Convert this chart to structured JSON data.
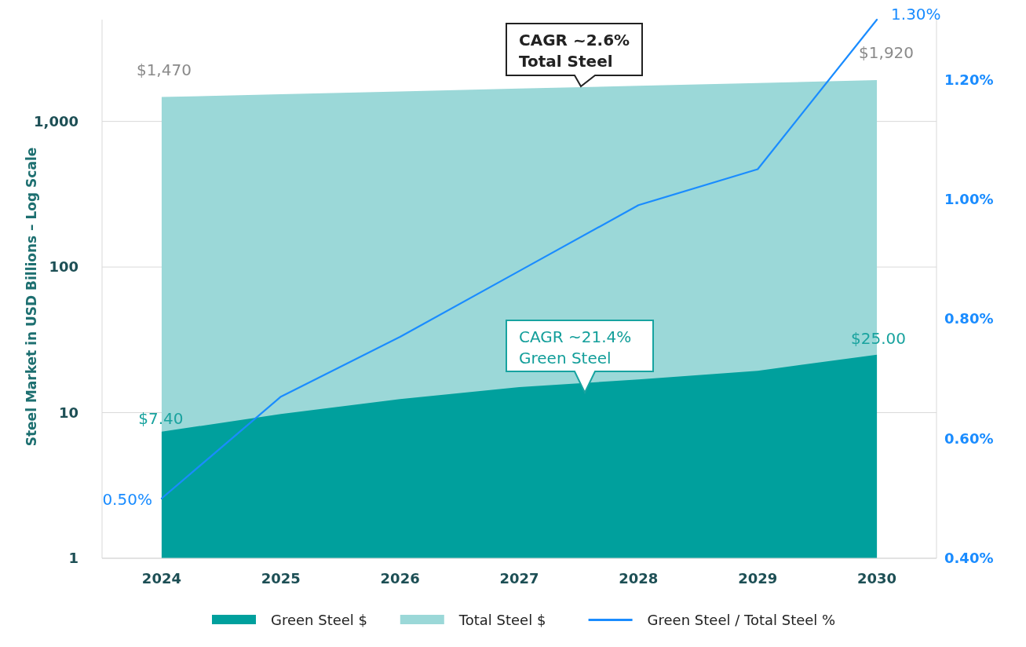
{
  "chart_data": {
    "type": "area",
    "ylabel": "Steel Market in USD Billions – Log Scale",
    "categories": [
      "2024",
      "2025",
      "2026",
      "2027",
      "2028",
      "2029",
      "2030"
    ],
    "log": "y",
    "ylim": [
      1,
      5000
    ],
    "yticks": [
      {
        "value": 1,
        "label": "1"
      },
      {
        "value": 10,
        "label": "10"
      },
      {
        "value": 100,
        "label": "100"
      },
      {
        "value": 1000,
        "label": "1,000"
      }
    ],
    "y2lim": [
      0.4,
      1.3
    ],
    "y2ticks": [
      {
        "value": 0.4,
        "label": "0.40%"
      },
      {
        "value": 0.6,
        "label": "0.60%"
      },
      {
        "value": 0.8,
        "label": "0.80%"
      },
      {
        "value": 1.0,
        "label": "1.00%"
      },
      {
        "value": 1.2,
        "label": "1.20%"
      }
    ],
    "grid": "y",
    "legend": "bottom",
    "series": [
      {
        "name": "Green Steel $",
        "color": "#00a09d",
        "values": [
          7.4,
          9.8,
          12.4,
          15,
          16.9,
          19.4,
          25
        ],
        "value_labels": [
          "$7.40",
          null,
          null,
          null,
          null,
          null,
          "$25.00"
        ]
      },
      {
        "name": "Total Steel $",
        "color": "#9bd8d8",
        "values": [
          1470,
          1537,
          1607,
          1680,
          1756,
          1836,
          1920
        ],
        "value_labels": [
          "$1,470",
          null,
          null,
          null,
          null,
          null,
          "$1,920"
        ]
      },
      {
        "name": "Green Steel / Total Steel %",
        "type": "line",
        "axis": "y2",
        "color": "#1a8cff",
        "values": [
          0.5,
          0.67,
          0.77,
          0.88,
          0.99,
          1.05,
          1.3
        ],
        "value_labels": [
          "0.50%",
          null,
          null,
          null,
          null,
          null,
          "1.30%"
        ]
      }
    ],
    "annotations": [
      "CAGR ~2.6%\nTotal Steel",
      "CAGR ~21.4%\nGreen Steel"
    ]
  }
}
